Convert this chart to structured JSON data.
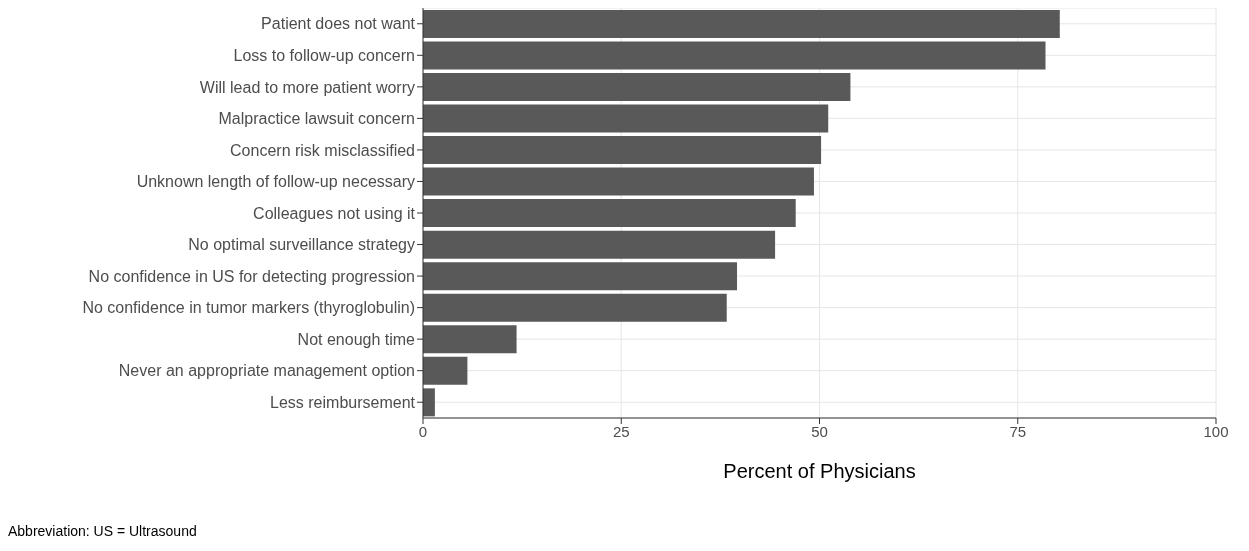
{
  "chart_data": {
    "type": "bar",
    "orientation": "horizontal",
    "xlabel": "Percent of Physicians",
    "categories": [
      "Patient does not want",
      "Loss to follow-up concern",
      "Will lead to more patient worry",
      "Malpractice lawsuit concern",
      "Concern risk misclassified",
      "Unknown length of follow-up necessary",
      "Colleagues not using it",
      "No optimal surveillance strategy",
      "No confidence in US for detecting progression",
      "No confidence in tumor markers (thyroglobulin)",
      "Not enough time",
      "Never an appropriate management option",
      "Less reimbursement"
    ],
    "values": [
      80.3,
      78.5,
      53.9,
      51.1,
      50.2,
      49.3,
      47.0,
      44.4,
      39.6,
      38.3,
      11.8,
      5.6,
      1.5
    ],
    "color": "#595959",
    "xlim": [
      0,
      100
    ],
    "xticks": [
      0,
      25,
      50,
      75,
      100
    ],
    "grid": true,
    "annotations": [
      "Abbreviation: US = Ultrasound"
    ]
  }
}
